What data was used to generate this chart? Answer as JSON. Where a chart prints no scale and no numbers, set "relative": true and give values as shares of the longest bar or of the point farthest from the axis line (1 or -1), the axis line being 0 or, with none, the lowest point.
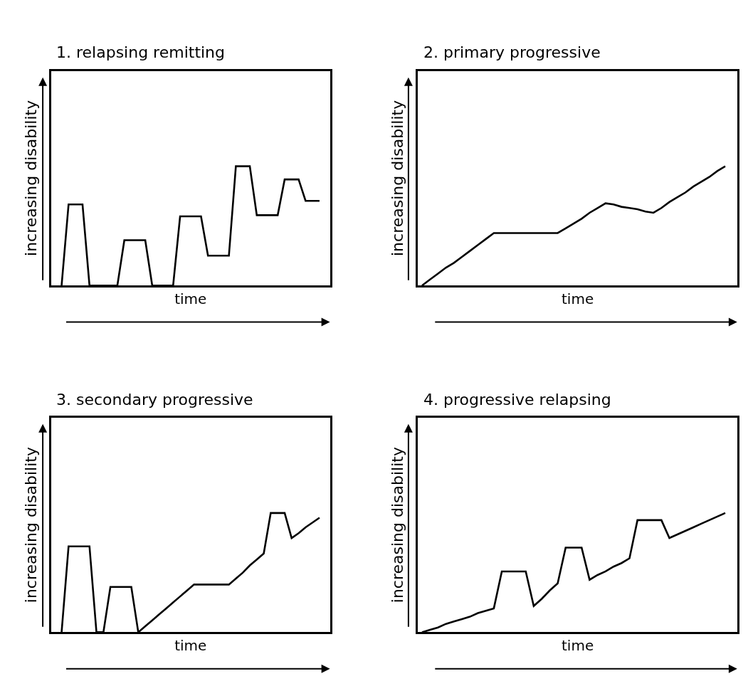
{
  "chart_data": [
    {
      "type": "line",
      "title": "1. relapsing remitting",
      "xlabel": "time",
      "ylabel": "increasing disability",
      "relative": true,
      "color": "#000000",
      "categories": [
        null,
        null,
        null,
        null,
        null,
        null,
        null,
        null,
        null,
        null,
        null,
        null,
        null,
        null,
        null,
        null,
        null,
        null,
        null,
        null,
        null,
        null,
        null,
        null,
        null,
        null,
        null,
        null,
        null,
        null,
        null,
        null,
        null,
        null,
        null,
        null,
        null,
        null,
        null,
        null
      ],
      "values": [
        null,
        0,
        0.68,
        0.68,
        0.68,
        0,
        0,
        0,
        0,
        0,
        0.38,
        0.38,
        0.38,
        0.38,
        0,
        0,
        0,
        0,
        0.58,
        0.58,
        0.58,
        0.58,
        0.25,
        0.25,
        0.25,
        0.25,
        1,
        1,
        1,
        0.59,
        0.59,
        0.59,
        0.59,
        0.89,
        0.89,
        0.89,
        0.71,
        0.71,
        0.71,
        null
      ]
    },
    {
      "type": "line",
      "title": "2. primary progressive",
      "xlabel": "time",
      "ylabel": "increasing disability",
      "relative": true,
      "color": "#000000",
      "categories": [
        null,
        null,
        null,
        null,
        null,
        null,
        null,
        null,
        null,
        null,
        null,
        null,
        null,
        null,
        null,
        null,
        null,
        null,
        null,
        null,
        null,
        null,
        null,
        null,
        null,
        null,
        null,
        null,
        null,
        null,
        null,
        null,
        null,
        null,
        null,
        null,
        null,
        null,
        null,
        null
      ],
      "values": [
        0,
        0.05,
        0.1,
        0.15,
        0.19,
        0.24,
        0.29,
        0.34,
        0.39,
        0.44,
        0.44,
        0.44,
        0.44,
        0.44,
        0.44,
        0.44,
        0.44,
        0.44,
        0.48,
        0.52,
        0.56,
        0.61,
        0.65,
        0.69,
        0.68,
        0.66,
        0.65,
        0.64,
        0.62,
        0.61,
        0.65,
        0.7,
        0.74,
        0.78,
        0.83,
        0.87,
        0.91,
        0.96,
        1,
        null
      ]
    },
    {
      "type": "line",
      "title": "3. secondary progressive",
      "xlabel": "time",
      "ylabel": "increasing disability",
      "relative": true,
      "color": "#000000",
      "categories": [
        null,
        null,
        null,
        null,
        null,
        null,
        null,
        null,
        null,
        null,
        null,
        null,
        null,
        null,
        null,
        null,
        null,
        null,
        null,
        null,
        null,
        null,
        null,
        null,
        null,
        null,
        null,
        null,
        null,
        null,
        null,
        null,
        null,
        null,
        null,
        null,
        null,
        null,
        null,
        null
      ],
      "values": [
        null,
        0,
        0.72,
        0.72,
        0.72,
        0.72,
        0,
        0,
        0.38,
        0.38,
        0.38,
        0.38,
        0,
        0.05,
        0.1,
        0.15,
        0.2,
        0.25,
        0.3,
        0.35,
        0.4,
        0.4,
        0.4,
        0.4,
        0.4,
        0.4,
        0.45,
        0.5,
        0.56,
        0.61,
        0.66,
        1,
        1,
        1,
        0.79,
        0.83,
        0.88,
        0.92,
        0.96,
        null
      ]
    },
    {
      "type": "line",
      "title": "4. progressive relapsing",
      "xlabel": "time",
      "ylabel": "increasing disability",
      "relative": true,
      "color": "#000000",
      "categories": [
        null,
        null,
        null,
        null,
        null,
        null,
        null,
        null,
        null,
        null,
        null,
        null,
        null,
        null,
        null,
        null,
        null,
        null,
        null,
        null,
        null,
        null,
        null,
        null,
        null,
        null,
        null,
        null,
        null,
        null,
        null,
        null,
        null,
        null,
        null,
        null,
        null,
        null,
        null,
        null
      ],
      "values": [
        0,
        0.02,
        0.04,
        0.07,
        0.09,
        0.11,
        0.13,
        0.16,
        0.18,
        0.2,
        0.51,
        0.51,
        0.51,
        0.51,
        0.22,
        0.28,
        0.35,
        0.41,
        0.71,
        0.71,
        0.71,
        0.44,
        0.48,
        0.51,
        0.55,
        0.58,
        0.62,
        0.94,
        0.94,
        0.94,
        0.94,
        0.79,
        0.82,
        0.85,
        0.88,
        0.91,
        0.94,
        0.97,
        1,
        null
      ]
    }
  ]
}
